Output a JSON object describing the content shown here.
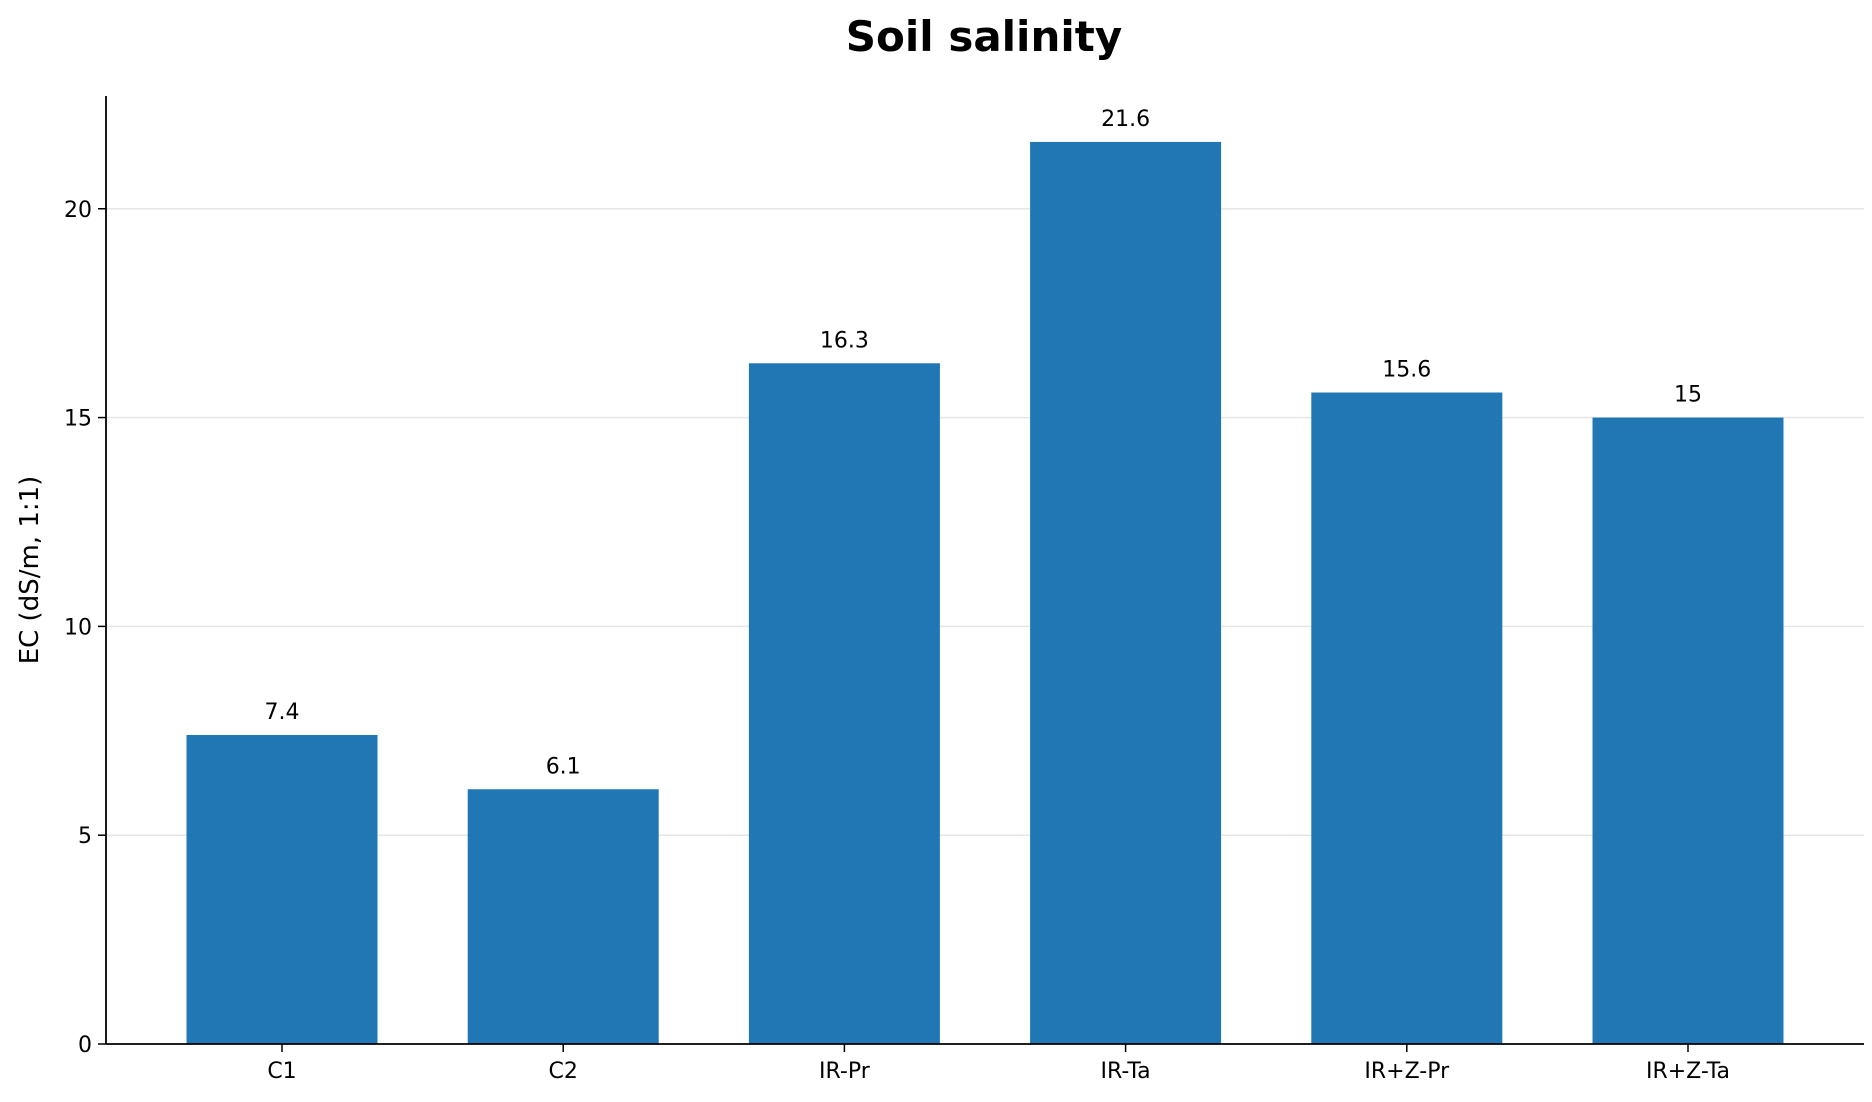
{
  "chart_data": {
    "type": "bar",
    "title": "Soil salinity",
    "xlabel": "",
    "ylabel": "EC (dS/m, 1:1)",
    "categories": [
      "C1",
      "C2",
      "IR-Pr",
      "IR-Ta",
      "IR+Z-Pr",
      "IR+Z-Ta"
    ],
    "values": [
      7.4,
      6.1,
      16.3,
      21.6,
      15.6,
      15
    ],
    "data_labels": [
      "7.4",
      "6.1",
      "16.3",
      "21.6",
      "15.6",
      "15"
    ],
    "y_ticks": [
      0,
      5,
      10,
      15,
      20
    ],
    "y_tick_labels": [
      "0",
      "5",
      "10",
      "15",
      "20"
    ],
    "ylim": [
      0,
      22.7
    ],
    "grid": "horizontal",
    "legend": "none",
    "colors": {
      "bar": "#2077b4",
      "grid": "#e6e6e6",
      "axis": "#000000"
    }
  }
}
